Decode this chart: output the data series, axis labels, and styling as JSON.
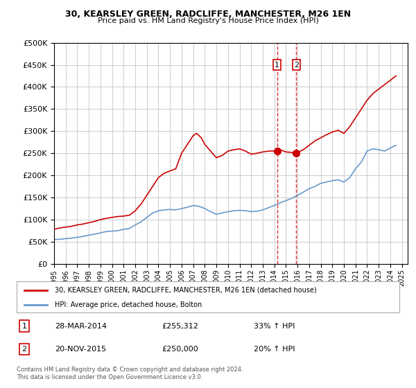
{
  "title": "30, KEARSLEY GREEN, RADCLIFFE, MANCHESTER, M26 1EN",
  "subtitle": "Price paid vs. HM Land Registry's House Price Index (HPI)",
  "legend_line1": "30, KEARSLEY GREEN, RADCLIFFE, MANCHESTER, M26 1EN (detached house)",
  "legend_line2": "HPI: Average price, detached house, Bolton",
  "transactions": [
    {
      "num": 1,
      "date": "28-MAR-2014",
      "price": "£255,312",
      "hpi": "33% ↑ HPI",
      "year": 2014.23
    },
    {
      "num": 2,
      "date": "20-NOV-2015",
      "price": "£250,000",
      "hpi": "20% ↑ HPI",
      "year": 2015.89
    }
  ],
  "footer": "Contains HM Land Registry data © Crown copyright and database right 2024.\nThis data is licensed under the Open Government Licence v3.0.",
  "hpi_color": "#6699cc",
  "price_color": "#cc0000",
  "transaction_color": "#cc0000",
  "dashed_color": "#cc0000",
  "background_color": "#ffffff",
  "grid_color": "#cccccc",
  "ylim": [
    0,
    500000
  ],
  "xlim": [
    1995,
    2025.5
  ],
  "yticks": [
    0,
    50000,
    100000,
    150000,
    200000,
    250000,
    300000,
    350000,
    400000,
    450000,
    500000
  ],
  "xticks": [
    1995,
    1996,
    1997,
    1998,
    1999,
    2000,
    2001,
    2002,
    2003,
    2004,
    2005,
    2006,
    2007,
    2008,
    2009,
    2010,
    2011,
    2012,
    2013,
    2014,
    2015,
    2016,
    2017,
    2018,
    2019,
    2020,
    2021,
    2022,
    2023,
    2024,
    2025
  ],
  "hpi_data": {
    "years": [
      1995.0,
      1995.5,
      1996.0,
      1996.5,
      1997.0,
      1997.5,
      1998.0,
      1998.5,
      1999.0,
      1999.5,
      2000.0,
      2000.5,
      2001.0,
      2001.5,
      2002.0,
      2002.5,
      2003.0,
      2003.5,
      2004.0,
      2004.5,
      2005.0,
      2005.5,
      2006.0,
      2006.5,
      2007.0,
      2007.5,
      2008.0,
      2008.5,
      2009.0,
      2009.5,
      2010.0,
      2010.5,
      2011.0,
      2011.5,
      2012.0,
      2012.5,
      2013.0,
      2013.5,
      2014.0,
      2014.5,
      2015.0,
      2015.5,
      2016.0,
      2016.5,
      2017.0,
      2017.5,
      2018.0,
      2018.5,
      2019.0,
      2019.5,
      2020.0,
      2020.5,
      2021.0,
      2021.5,
      2022.0,
      2022.5,
      2023.0,
      2023.5,
      2024.0,
      2024.5
    ],
    "values": [
      55000,
      55500,
      57000,
      58000,
      60000,
      62000,
      65000,
      67000,
      70000,
      73000,
      74000,
      75000,
      78000,
      80000,
      88000,
      95000,
      105000,
      115000,
      120000,
      122000,
      123000,
      122000,
      125000,
      128000,
      132000,
      130000,
      125000,
      118000,
      112000,
      115000,
      118000,
      120000,
      121000,
      120000,
      118000,
      119000,
      122000,
      127000,
      132000,
      138000,
      143000,
      148000,
      155000,
      162000,
      170000,
      175000,
      182000,
      185000,
      188000,
      190000,
      185000,
      195000,
      215000,
      230000,
      255000,
      260000,
      258000,
      255000,
      262000,
      268000
    ]
  },
  "price_data": {
    "years": [
      1995.0,
      1995.3,
      1995.7,
      1996.0,
      1996.5,
      1997.0,
      1997.5,
      1998.0,
      1998.5,
      1999.0,
      1999.5,
      2000.0,
      2000.5,
      2001.0,
      2001.5,
      2002.0,
      2002.5,
      2003.0,
      2003.5,
      2004.0,
      2004.5,
      2005.0,
      2005.5,
      2006.0,
      2006.5,
      2007.0,
      2007.3,
      2007.7,
      2008.0,
      2008.5,
      2009.0,
      2009.5,
      2010.0,
      2010.5,
      2011.0,
      2011.5,
      2012.0,
      2012.5,
      2013.0,
      2013.5,
      2014.0,
      2014.23,
      2014.5,
      2014.8,
      2015.0,
      2015.5,
      2015.89,
      2016.0,
      2016.5,
      2017.0,
      2017.5,
      2018.0,
      2018.5,
      2019.0,
      2019.5,
      2020.0,
      2020.5,
      2021.0,
      2021.5,
      2022.0,
      2022.5,
      2023.0,
      2023.5,
      2024.0,
      2024.5
    ],
    "values": [
      78000,
      80000,
      82000,
      83000,
      85000,
      88000,
      90000,
      93000,
      96000,
      100000,
      103000,
      105000,
      107000,
      108000,
      110000,
      120000,
      135000,
      155000,
      175000,
      195000,
      205000,
      210000,
      215000,
      250000,
      270000,
      290000,
      295000,
      285000,
      270000,
      255000,
      240000,
      245000,
      255000,
      258000,
      260000,
      255000,
      248000,
      250000,
      253000,
      255000,
      255000,
      255312,
      258000,
      255000,
      253000,
      252000,
      250000,
      252000,
      258000,
      268000,
      278000,
      285000,
      292000,
      298000,
      302000,
      295000,
      310000,
      330000,
      350000,
      370000,
      385000,
      395000,
      405000,
      415000,
      425000
    ]
  }
}
